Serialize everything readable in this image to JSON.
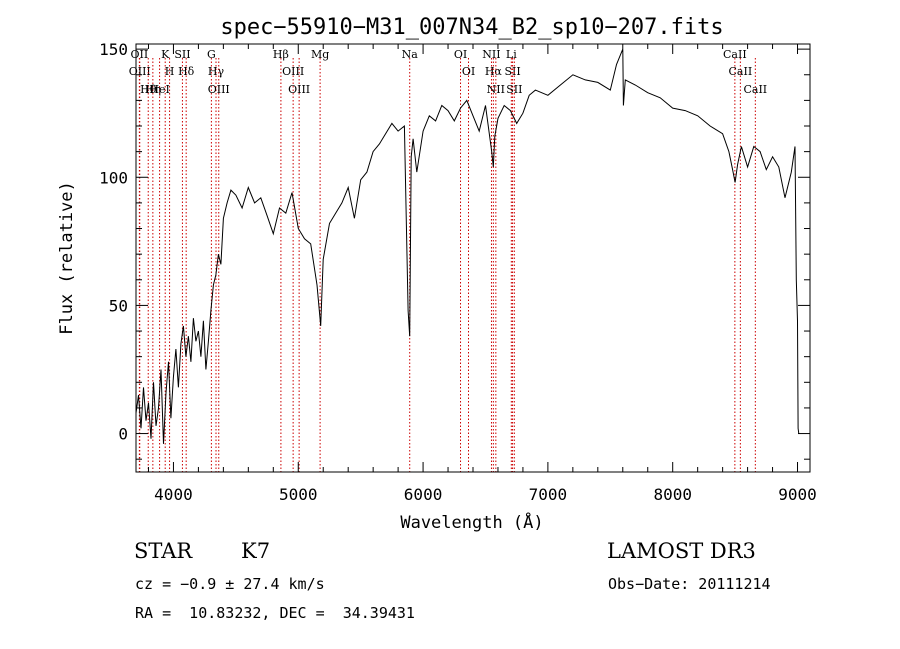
{
  "chart_data": {
    "type": "line",
    "title": "spec−55910−M31_007N34_B2_sp10−207.fits",
    "xlabel": "Wavelength (Å)",
    "ylabel": "Flux (relative)",
    "xlim": [
      3700,
      9100
    ],
    "ylim": [
      -15,
      152
    ],
    "x_ticks": [
      4000,
      5000,
      6000,
      7000,
      8000,
      9000
    ],
    "y_ticks": [
      0,
      50,
      100,
      150
    ],
    "series": [
      {
        "name": "spectrum",
        "x": [
          3700,
          3720,
          3740,
          3760,
          3780,
          3800,
          3820,
          3840,
          3860,
          3880,
          3900,
          3920,
          3940,
          3960,
          3980,
          4000,
          4020,
          4040,
          4060,
          4080,
          4100,
          4120,
          4140,
          4160,
          4180,
          4200,
          4220,
          4240,
          4260,
          4280,
          4300,
          4320,
          4340,
          4360,
          4380,
          4400,
          4430,
          4460,
          4500,
          4550,
          4600,
          4650,
          4700,
          4750,
          4800,
          4850,
          4900,
          4950,
          5000,
          5050,
          5100,
          5150,
          5180,
          5200,
          5250,
          5300,
          5350,
          5400,
          5450,
          5500,
          5550,
          5600,
          5650,
          5700,
          5750,
          5800,
          5850,
          5880,
          5893,
          5905,
          5920,
          5950,
          6000,
          6050,
          6100,
          6150,
          6200,
          6250,
          6300,
          6350,
          6400,
          6450,
          6500,
          6550,
          6563,
          6575,
          6600,
          6650,
          6700,
          6750,
          6800,
          6850,
          6900,
          7000,
          7100,
          7200,
          7300,
          7400,
          7500,
          7550,
          7600,
          7605,
          7620,
          7700,
          7800,
          7900,
          8000,
          8100,
          8200,
          8300,
          8400,
          8450,
          8480,
          8500,
          8520,
          8550,
          8600,
          8650,
          8700,
          8750,
          8800,
          8850,
          8900,
          8950,
          8980,
          8990,
          9000,
          9005,
          9010
        ],
        "values": [
          8,
          15,
          2,
          18,
          5,
          12,
          -2,
          20,
          3,
          10,
          25,
          -4,
          16,
          28,
          6,
          22,
          33,
          18,
          35,
          42,
          30,
          38,
          28,
          45,
          36,
          40,
          30,
          44,
          25,
          36,
          48,
          58,
          62,
          70,
          66,
          84,
          90,
          95,
          93,
          88,
          96,
          90,
          92,
          85,
          78,
          88,
          86,
          94,
          80,
          76,
          74,
          58,
          42,
          68,
          82,
          86,
          90,
          96,
          84,
          99,
          102,
          110,
          113,
          117,
          121,
          118,
          120,
          48,
          38,
          108,
          115,
          102,
          118,
          124,
          122,
          128,
          126,
          122,
          127,
          130,
          124,
          118,
          128,
          110,
          104,
          116,
          123,
          128,
          126,
          121,
          125,
          132,
          134,
          132,
          136,
          140,
          138,
          137,
          134,
          144,
          150,
          128,
          138,
          136,
          133,
          131,
          127,
          126,
          124,
          120,
          117,
          110,
          103,
          98,
          105,
          112,
          104,
          112,
          110,
          103,
          108,
          104,
          92,
          102,
          112,
          60,
          44,
          2,
          0
        ]
      }
    ],
    "line_markers": [
      {
        "wavelength": 3727,
        "label": "OII"
      },
      {
        "wavelength": 3730,
        "label": "OIII"
      },
      {
        "wavelength": 3798,
        "label": "Hθ"
      },
      {
        "wavelength": 3835,
        "label": "Hη"
      },
      {
        "wavelength": 3889,
        "label": "HeI"
      },
      {
        "wavelength": 3934,
        "label": "K"
      },
      {
        "wavelength": 3969,
        "label": "H"
      },
      {
        "wavelength": 4072,
        "label": "SII"
      },
      {
        "wavelength": 4102,
        "label": "Hδ"
      },
      {
        "wavelength": 4304,
        "label": "G"
      },
      {
        "wavelength": 4341,
        "label": "Hγ"
      },
      {
        "wavelength": 4363,
        "label": "OIII"
      },
      {
        "wavelength": 4861,
        "label": "Hβ"
      },
      {
        "wavelength": 4959,
        "label": "OIII"
      },
      {
        "wavelength": 5007,
        "label": "OIII"
      },
      {
        "wavelength": 5175,
        "label": "Mg"
      },
      {
        "wavelength": 5893,
        "label": "Na"
      },
      {
        "wavelength": 6300,
        "label": "OI"
      },
      {
        "wavelength": 6364,
        "label": "OI"
      },
      {
        "wavelength": 6548,
        "label": "NII"
      },
      {
        "wavelength": 6563,
        "label": "Hα"
      },
      {
        "wavelength": 6583,
        "label": "NII"
      },
      {
        "wavelength": 6707,
        "label": "Li"
      },
      {
        "wavelength": 6717,
        "label": "SII"
      },
      {
        "wavelength": 6731,
        "label": "SII"
      },
      {
        "wavelength": 8498,
        "label": "CaII"
      },
      {
        "wavelength": 8542,
        "label": "CaII"
      },
      {
        "wavelength": 8662,
        "label": "CaII"
      }
    ]
  },
  "info": {
    "object_class": "STAR",
    "subclass": "K7",
    "survey": "LAMOST DR3",
    "redshift_text": "cz = −0.9 ± 27.4 km/s",
    "obs_date_text": "Obs−Date: 20111214",
    "coords_text": "RA =  10.83232, DEC =  34.39431"
  },
  "colors": {
    "spectrum": "#000000",
    "line_marker": "#cc0000",
    "axis": "#000000"
  }
}
